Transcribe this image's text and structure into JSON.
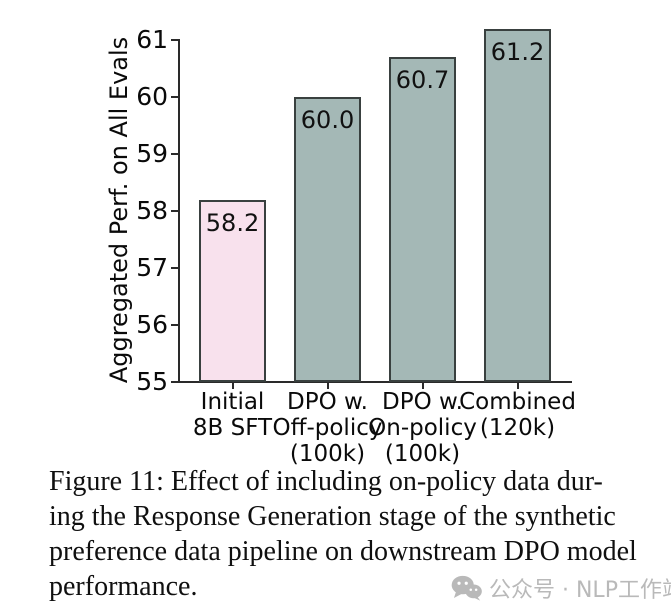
{
  "caption": {
    "lines": [
      "Figure 11:  Effect of including on-policy data dur-",
      "ing the Response Generation stage of the synthetic",
      "preference data pipeline on downstream DPO model",
      "performance."
    ],
    "full_text": "Figure 11: Effect of including on-policy data during the Response Generation stage of the synthetic preference data pipeline on downstream DPO model performance."
  },
  "watermark": {
    "icon": "wechat-icon",
    "text": "公众号 · NLP工作站",
    "color": "#b9b9b9"
  },
  "chart_data": {
    "type": "bar",
    "title": "",
    "xlabel": "",
    "ylabel": "Aggregated Perf. on All Evals",
    "categories": [
      "Initial 8B SFT",
      "DPO w. Off-policy (100k)",
      "DPO w. On-policy (100k)",
      "Combined (120k)"
    ],
    "category_lines": [
      [
        "Initial",
        "8B SFT"
      ],
      [
        "DPO w.",
        "Off-policy",
        "(100k)"
      ],
      [
        "DPO w.",
        "On-policy",
        "(100k)"
      ],
      [
        "Combined",
        "(120k)"
      ]
    ],
    "values": [
      58.2,
      60.0,
      60.7,
      61.2
    ],
    "bar_labels": [
      "58.2",
      "60.0",
      "60.7",
      "61.2"
    ],
    "ylim": [
      55,
      61.5
    ],
    "yticks": [
      55,
      56,
      57,
      58,
      59,
      60,
      61
    ],
    "grid": false,
    "legend": null,
    "colors": {
      "bar_fills": [
        "#f8e1ed",
        "#a4b8b6",
        "#a4b8b6",
        "#a4b8b6"
      ],
      "bar_edge": "#39403f",
      "axis": "#2a2a2a",
      "text": "#0a0a0a"
    }
  }
}
